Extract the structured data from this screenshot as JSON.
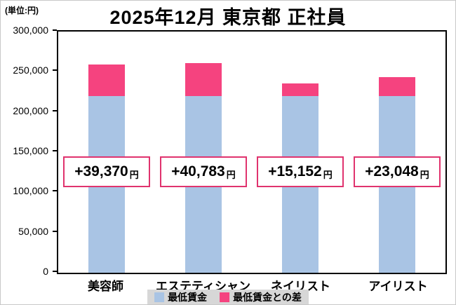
{
  "chart_data": {
    "type": "bar",
    "stacked": true,
    "title": "2025年12月 東京都 正社員",
    "unit_label": "(単位:円)",
    "categories": [
      "美容師",
      "エステティシャン",
      "ネイリスト",
      "アイリスト"
    ],
    "series": [
      {
        "name": "最低賃金",
        "color": "#a9c4e4",
        "values": [
          220000,
          220000,
          220000,
          220000
        ]
      },
      {
        "name": "最低賃金との差",
        "color": "#f5437f",
        "values": [
          39370,
          40783,
          15152,
          23048
        ]
      }
    ],
    "bar_labels": [
      "+39,370",
      "+40,783",
      "+15,152",
      "+23,048"
    ],
    "bar_label_suffix": "円",
    "ylim": [
      0,
      300000
    ],
    "yticks": [
      "300,000",
      "250,000",
      "200,000",
      "150,000",
      "100,000",
      "50,000",
      "0"
    ],
    "grid": false,
    "legend_position": "bottom",
    "colors": {
      "label_border": "#e0336e",
      "legend_bg": "#d7d7d7"
    }
  }
}
